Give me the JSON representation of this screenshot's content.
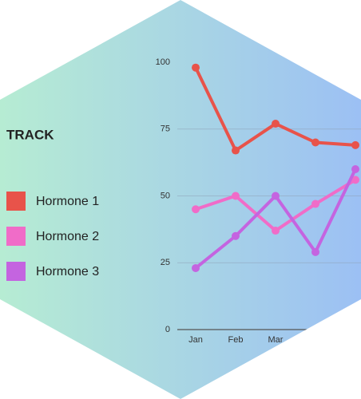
{
  "chart_data": {
    "type": "line",
    "legend_title": "TRACK",
    "categories": [
      "Jan",
      "Feb",
      "Mar",
      null,
      null
    ],
    "series": [
      {
        "name": "Hormone 1",
        "color": "#e8534a",
        "values": [
          98,
          67,
          77,
          70,
          69
        ]
      },
      {
        "name": "Hormone 2",
        "color": "#f06cc8",
        "values": [
          45,
          50,
          37,
          47,
          56
        ]
      },
      {
        "name": "Hormone 3",
        "color": "#c464e0",
        "values": [
          23,
          35,
          50,
          29,
          60
        ]
      }
    ],
    "ylim": [
      0,
      100
    ],
    "yticks": [
      0,
      25,
      50,
      75,
      100
    ],
    "grid": true
  }
}
